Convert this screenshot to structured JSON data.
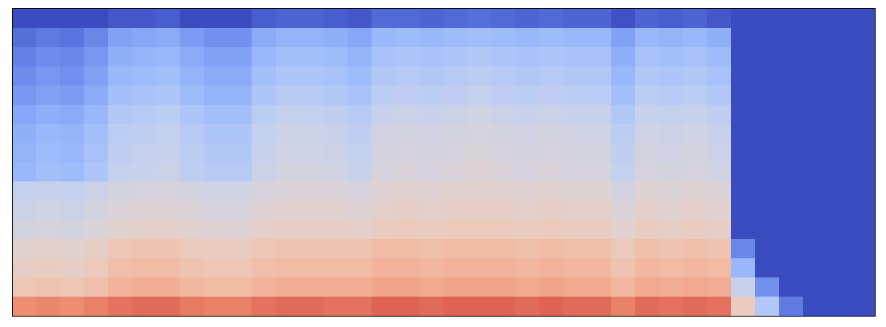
{
  "chart_data": {
    "type": "heatmap",
    "color": "coolwarm",
    "tick_labels": false,
    "zlim": [
      -80,
      -10
    ],
    "cells": [
      [
        -80,
        -80,
        -80,
        -80,
        -78,
        -78,
        -77,
        -80,
        -80,
        -80,
        -77,
        -76,
        -76,
        -77,
        -78,
        -75,
        -75,
        -76,
        -75,
        -74,
        -75,
        -76,
        -75,
        -76,
        -76,
        -79,
        -76,
        -77,
        -76,
        -78,
        -80,
        -80,
        -80,
        -80,
        -80,
        -80
      ],
      [
        -74,
        -72,
        -73,
        -70,
        -65,
        -64,
        -63,
        -66,
        -68,
        -68,
        -63,
        -61,
        -61,
        -62,
        -64,
        -60,
        -59,
        -60,
        -59,
        -58,
        -59,
        -60,
        -59,
        -60,
        -60,
        -65,
        -60,
        -61,
        -60,
        -62,
        -80,
        -80,
        -80,
        -80,
        -80,
        -80
      ],
      [
        -71,
        -69,
        -70,
        -67,
        -62,
        -61,
        -60,
        -63,
        -65,
        -65,
        -60,
        -58,
        -58,
        -59,
        -61,
        -57,
        -56,
        -57,
        -56,
        -55,
        -56,
        -57,
        -56,
        -57,
        -57,
        -62,
        -57,
        -58,
        -57,
        -59,
        -80,
        -80,
        -80,
        -80,
        -80,
        -80
      ],
      [
        -69,
        -67,
        -68,
        -65,
        -60,
        -59,
        -58,
        -61,
        -63,
        -63,
        -58,
        -56,
        -56,
        -57,
        -59,
        -55,
        -54,
        -55,
        -54,
        -53,
        -54,
        -55,
        -54,
        -55,
        -55,
        -60,
        -55,
        -56,
        -55,
        -57,
        -80,
        -80,
        -80,
        -80,
        -80,
        -80
      ],
      [
        -67,
        -65,
        -66,
        -63,
        -58,
        -57,
        -56,
        -59,
        -61,
        -61,
        -56,
        -54,
        -54,
        -55,
        -57,
        -53,
        -52,
        -53,
        -52,
        -51,
        -52,
        -53,
        -52,
        -53,
        -53,
        -58,
        -53,
        -54,
        -53,
        -55,
        -80,
        -80,
        -80,
        -80,
        -80,
        -80
      ],
      [
        -64,
        -62,
        -63,
        -60,
        -55,
        -54,
        -53,
        -56,
        -58,
        -58,
        -53,
        -51,
        -51,
        -52,
        -54,
        -50,
        -49,
        -50,
        -49,
        -48,
        -49,
        -50,
        -49,
        -50,
        -50,
        -55,
        -50,
        -51,
        -50,
        -52,
        -80,
        -80,
        -80,
        -80,
        -80,
        -80
      ],
      [
        -62,
        -60,
        -61,
        -58,
        -53,
        -52,
        -51,
        -54,
        -56,
        -56,
        -51,
        -49,
        -49,
        -50,
        -52,
        -48,
        -47,
        -48,
        -47,
        -46,
        -47,
        -48,
        -47,
        -48,
        -48,
        -53,
        -48,
        -49,
        -48,
        -50,
        -80,
        -80,
        -80,
        -80,
        -80,
        -80
      ],
      [
        -61,
        -59,
        -60,
        -57,
        -52,
        -51,
        -50,
        -53,
        -55,
        -55,
        -50,
        -48,
        -48,
        -49,
        -51,
        -47,
        -46,
        -47,
        -46,
        -45,
        -46,
        -47,
        -46,
        -47,
        -47,
        -52,
        -47,
        -48,
        -47,
        -49,
        -80,
        -80,
        -80,
        -80,
        -80,
        -80
      ],
      [
        -60,
        -58,
        -59,
        -56,
        -51,
        -50,
        -49,
        -52,
        -54,
        -54,
        -49,
        -47,
        -47,
        -48,
        -50,
        -46,
        -45,
        -46,
        -45,
        -44,
        -45,
        -46,
        -45,
        -46,
        -46,
        -51,
        -46,
        -47,
        -46,
        -48,
        -80,
        -80,
        -80,
        -80,
        -80,
        -80
      ],
      [
        -51,
        -50,
        -51,
        -49,
        -47,
        -46,
        -46,
        -47,
        -48,
        -48,
        -46,
        -45,
        -45,
        -45,
        -46,
        -44,
        -43,
        -44,
        -43,
        -43,
        -43,
        -44,
        -43,
        -44,
        -44,
        -47,
        -44,
        -45,
        -44,
        -45,
        -80,
        -80,
        -80,
        -80,
        -80,
        -80
      ],
      [
        -49,
        -48,
        -49,
        -47,
        -45,
        -44,
        -44,
        -45,
        -46,
        -46,
        -44,
        -43,
        -43,
        -43,
        -44,
        -42,
        -41,
        -42,
        -41,
        -41,
        -41,
        -42,
        -41,
        -42,
        -42,
        -45,
        -42,
        -43,
        -42,
        -43,
        -80,
        -80,
        -80,
        -80,
        -80,
        -80
      ],
      [
        -47,
        -46,
        -47,
        -45,
        -43,
        -42,
        -42,
        -43,
        -44,
        -44,
        -42,
        -41,
        -41,
        -41,
        -42,
        -40,
        -39,
        -40,
        -39,
        -39,
        -39,
        -40,
        -39,
        -40,
        -40,
        -43,
        -40,
        -41,
        -40,
        -41,
        -80,
        -80,
        -80,
        -80,
        -80,
        -80
      ],
      [
        -43,
        -42,
        -43,
        -41,
        -38,
        -37,
        -37,
        -39,
        -40,
        -40,
        -38,
        -37,
        -37,
        -37,
        -37,
        -35,
        -35,
        -36,
        -35,
        -35,
        -35,
        -36,
        -35,
        -36,
        -36,
        -39,
        -36,
        -37,
        -36,
        -37,
        -70,
        -80,
        -80,
        -80,
        -80,
        -80
      ],
      [
        -41,
        -40,
        -41,
        -39,
        -36,
        -35,
        -35,
        -37,
        -38,
        -38,
        -36,
        -35,
        -35,
        -35,
        -35,
        -33,
        -33,
        -34,
        -33,
        -33,
        -33,
        -34,
        -33,
        -34,
        -34,
        -37,
        -34,
        -35,
        -34,
        -35,
        -60,
        -80,
        -80,
        -80,
        -80,
        -80
      ],
      [
        -38,
        -37,
        -38,
        -36,
        -33,
        -32,
        -32,
        -34,
        -35,
        -35,
        -33,
        -32,
        -32,
        -32,
        -32,
        -30,
        -30,
        -31,
        -30,
        -30,
        -30,
        -31,
        -30,
        -31,
        -31,
        -34,
        -31,
        -32,
        -31,
        -32,
        -50,
        -68,
        -80,
        -80,
        -80,
        -80
      ],
      [
        -26,
        -25,
        -26,
        -24,
        -22,
        -21,
        -21,
        -23,
        -24,
        -24,
        -22,
        -21,
        -21,
        -22,
        -22,
        -20,
        -20,
        -21,
        -20,
        -20,
        -20,
        -21,
        -20,
        -21,
        -21,
        -24,
        -21,
        -22,
        -21,
        -22,
        -40,
        -55,
        -72,
        -80,
        -80,
        -80
      ]
    ]
  }
}
